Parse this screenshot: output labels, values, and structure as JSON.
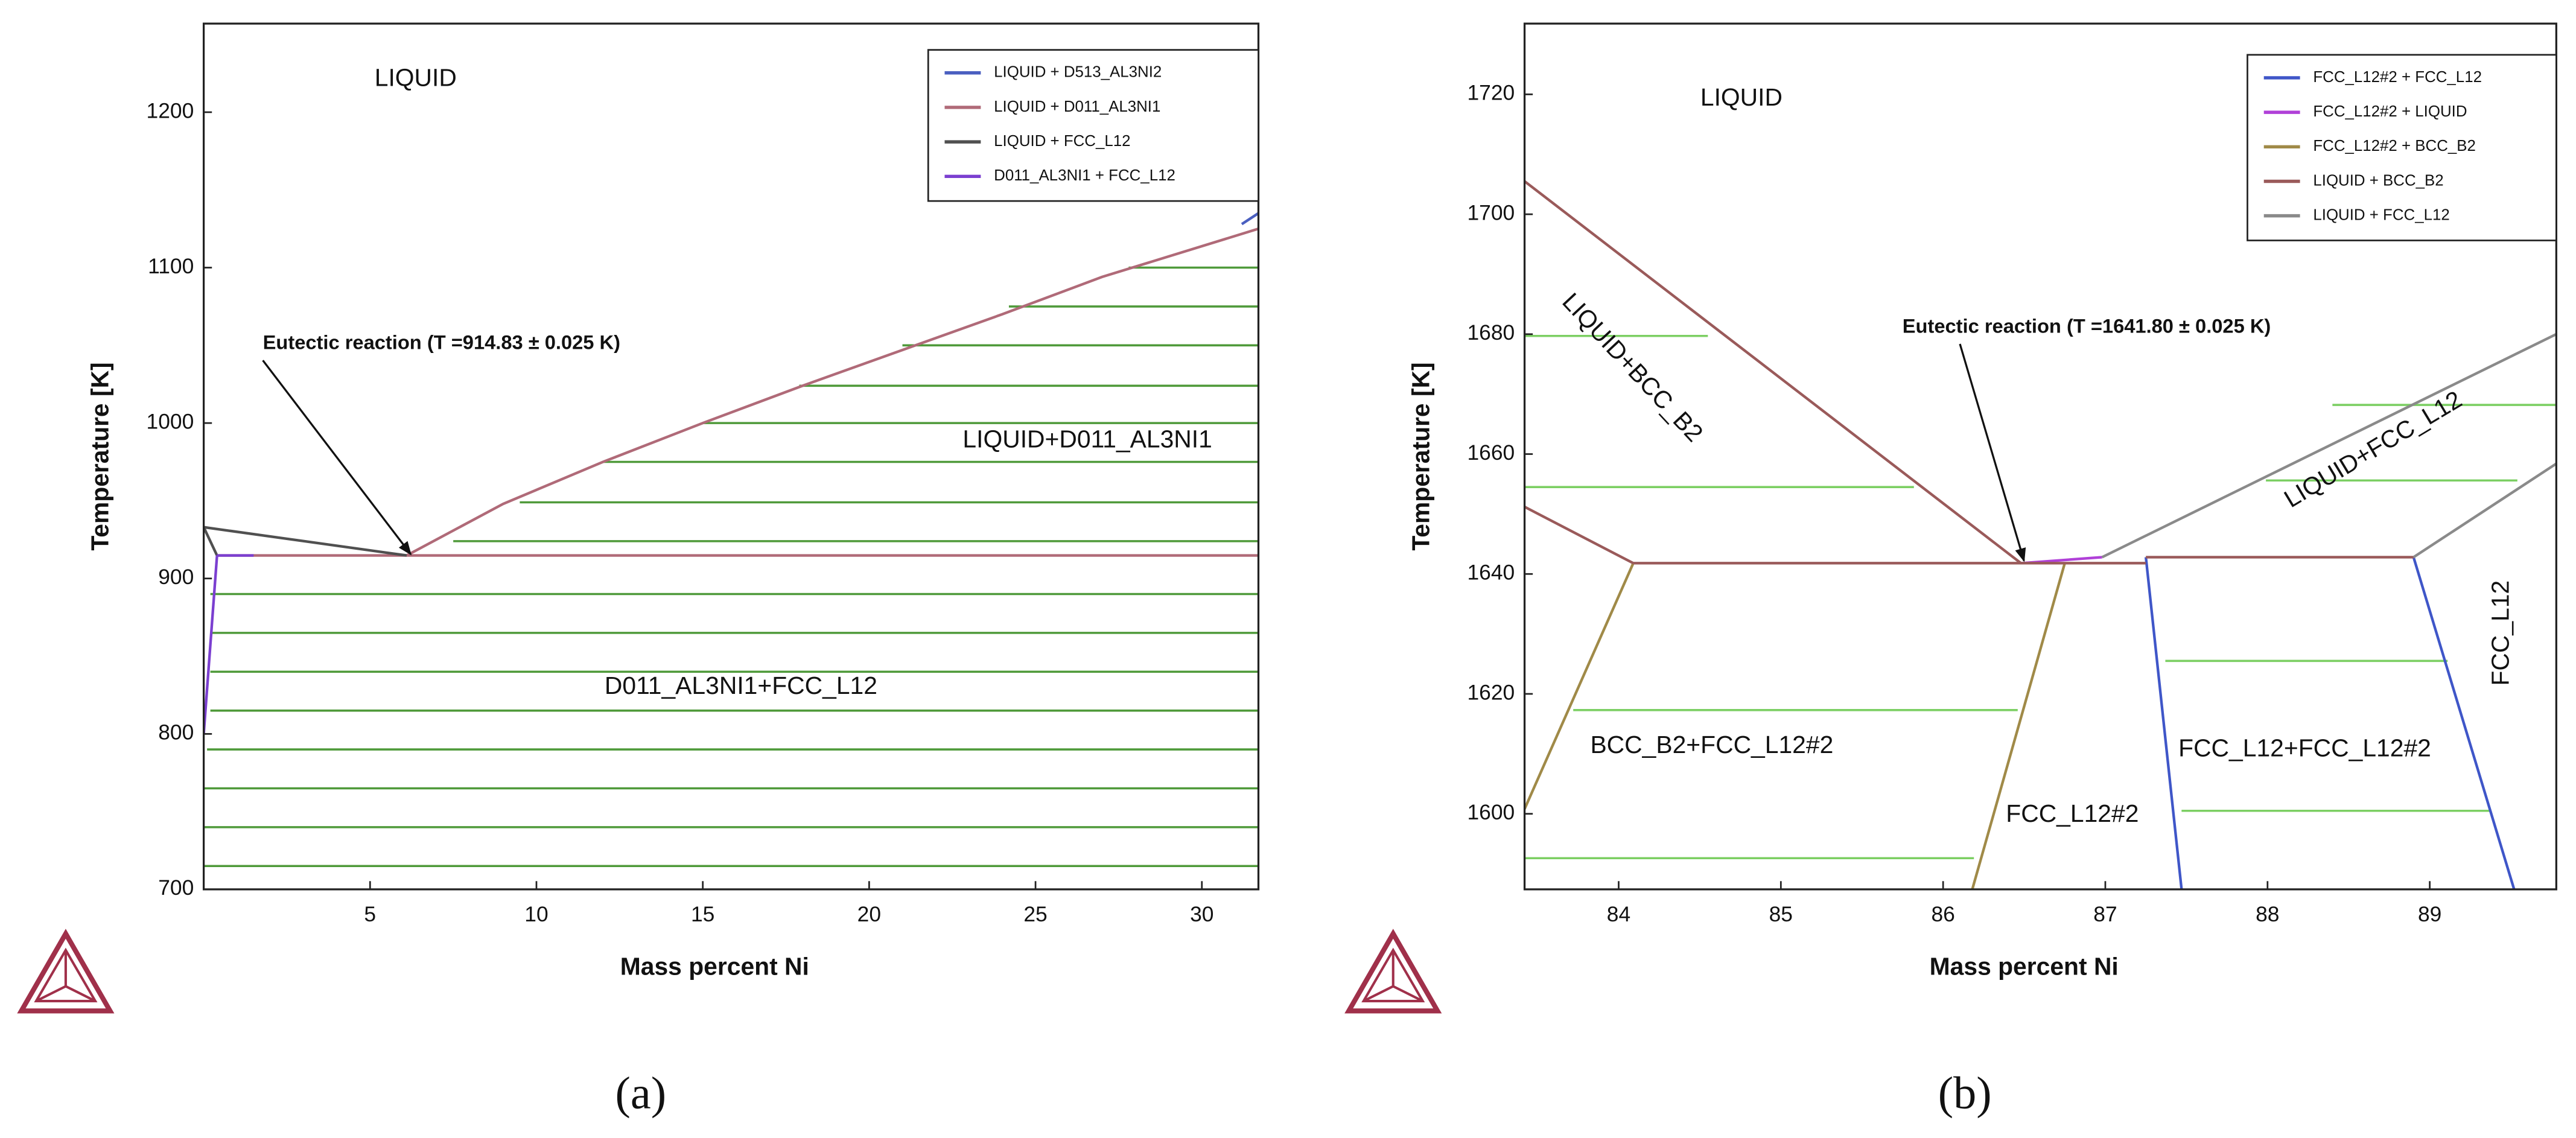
{
  "chart_data": [
    {
      "type": "line",
      "caption": "(a)",
      "x_label": "Mass percent Ni",
      "y_label": "Temperature [K]",
      "xlim": [
        0,
        31.7
      ],
      "ylim": [
        700,
        1257
      ],
      "xticks": [
        5,
        10,
        15,
        20,
        25,
        30
      ],
      "yticks": [
        700,
        800,
        900,
        1000,
        1100,
        1200
      ],
      "series": [
        {
          "name": "LIQUID + D513_AL3NI2",
          "color": "#4a5fc0",
          "x": [
            31.2,
            31.7
          ],
          "values": [
            1128,
            1135
          ]
        },
        {
          "name": "LIQUID + D011_AL3NI1",
          "color": "#b06a78",
          "x": [
            6.1,
            9,
            12,
            15,
            18,
            21,
            24,
            27,
            31.7,
            null,
            0.4,
            31.7
          ],
          "values": [
            914.8,
            948,
            975,
            1000,
            1024,
            1047,
            1070,
            1094,
            1125,
            null,
            914.8,
            914.8
          ]
        },
        {
          "name": "LIQUID + FCC_L12",
          "color": "#505050",
          "x": [
            0,
            6.1,
            null,
            0,
            0.4
          ],
          "values": [
            933,
            914.8,
            null,
            933,
            914.8
          ]
        },
        {
          "name": "D011_AL3NI1 + FCC_L12",
          "color": "#7b3fd0",
          "x": [
            0.4,
            0,
            null,
            0.4,
            1.5
          ],
          "values": [
            914.8,
            800,
            null,
            914.8,
            914.8
          ]
        }
      ],
      "tie_line_color": "#4f9a3a",
      "tie_lines": [
        {
          "y": 924,
          "x": [
            7.5,
            31.7
          ]
        },
        {
          "y": 949,
          "x": [
            9.5,
            31.7
          ]
        },
        {
          "y": 975,
          "x": [
            12,
            31.7
          ]
        },
        {
          "y": 1000,
          "x": [
            15,
            31.7
          ]
        },
        {
          "y": 1024,
          "x": [
            17.9,
            31.7
          ]
        },
        {
          "y": 1050,
          "x": [
            21,
            31.7
          ]
        },
        {
          "y": 1075,
          "x": [
            24.2,
            31.7
          ]
        },
        {
          "y": 1100,
          "x": [
            27.8,
            31.7
          ]
        },
        {
          "y": 890,
          "x": [
            0.2,
            31.7
          ]
        },
        {
          "y": 865,
          "x": [
            0.2,
            31.7
          ]
        },
        {
          "y": 840,
          "x": [
            0.2,
            31.7
          ]
        },
        {
          "y": 815,
          "x": [
            0.2,
            31.7
          ]
        },
        {
          "y": 790,
          "x": [
            0.1,
            31.7
          ]
        },
        {
          "y": 765,
          "x": [
            0,
            31.7
          ]
        },
        {
          "y": 740,
          "x": [
            0,
            31.7
          ]
        },
        {
          "y": 715,
          "x": [
            0,
            31.7
          ]
        }
      ],
      "annotations": [
        "LIQUID",
        "LIQUID+D011_AL3NI1",
        "D011_AL3NI1+FCC_L12"
      ],
      "eutectic_note": "Eutectic reaction (T =914.83 ± 0.025 K)"
    },
    {
      "type": "line",
      "caption": "(b)",
      "x_label": "Mass percent Ni",
      "y_label": "Temperature [K]",
      "xlim": [
        83.42,
        89.78
      ],
      "ylim": [
        1587.4,
        1731.8
      ],
      "xticks": [
        84,
        85,
        86,
        87,
        88,
        89
      ],
      "yticks": [
        1600,
        1620,
        1640,
        1660,
        1680,
        1700,
        1720
      ],
      "series": [
        {
          "name": "FCC_L12#2 + FCC_L12",
          "color": "#3f56c8",
          "x": [
            87.25,
            87.47,
            null,
            88.9,
            89.52
          ],
          "values": [
            1642.8,
            1587.4,
            null,
            1642.8,
            1587.4
          ]
        },
        {
          "name": "FCC_L12#2 + LIQUID",
          "color": "#b040d8",
          "x": [
            86.48,
            86.98
          ],
          "values": [
            1641.8,
            1642.8
          ]
        },
        {
          "name": "FCC_L12#2 + BCC_B2",
          "color": "#a08a48",
          "x": [
            84.09,
            83.42,
            null,
            86.75,
            86.18
          ],
          "values": [
            1641.8,
            1600.8,
            null,
            1641.8,
            1587.4
          ]
        },
        {
          "name": "LIQUID + BCC_B2",
          "color": "#9a5a5a",
          "x": [
            83.42,
            86.48,
            null,
            83.42,
            84.09,
            null,
            84.09,
            87.25,
            null,
            87.25,
            88.9
          ],
          "values": [
            1705.5,
            1641.8,
            null,
            1651.2,
            1641.8,
            null,
            1641.8,
            1641.8,
            null,
            1642.8,
            1642.8
          ]
        },
        {
          "name": "LIQUID + FCC_L12",
          "color": "#8a8a8a",
          "x": [
            86.98,
            89.78,
            null,
            88.9,
            89.78
          ],
          "values": [
            1642.8,
            1680,
            null,
            1642.8,
            1658.4
          ]
        }
      ],
      "tie_line_color": "#7ccf63",
      "tie_lines": [
        {
          "y": 1679.7,
          "x": [
            83.42,
            84.55
          ]
        },
        {
          "y": 1654.5,
          "x": [
            83.42,
            85.82
          ]
        },
        {
          "y": 1617.3,
          "x": [
            83.72,
            86.46
          ]
        },
        {
          "y": 1592.6,
          "x": [
            83.42,
            86.19
          ]
        },
        {
          "y": 1668.2,
          "x": [
            88.4,
            89.78
          ]
        },
        {
          "y": 1655.6,
          "x": [
            87.99,
            89.54
          ]
        },
        {
          "y": 1625.5,
          "x": [
            87.37,
            89.11
          ]
        },
        {
          "y": 1600.5,
          "x": [
            87.47,
            89.38
          ]
        }
      ],
      "annotations": [
        "LIQUID",
        "LIQUID+BCC_B2",
        "LIQUID+FCC_L12",
        "FCC_L12",
        "BCC_B2+FCC_L12#2",
        "FCC_L12#2",
        "FCC_L12+FCC_L12#2"
      ],
      "eutectic_note": "Eutectic reaction (T =1641.80 ± 0.025 K)"
    }
  ]
}
